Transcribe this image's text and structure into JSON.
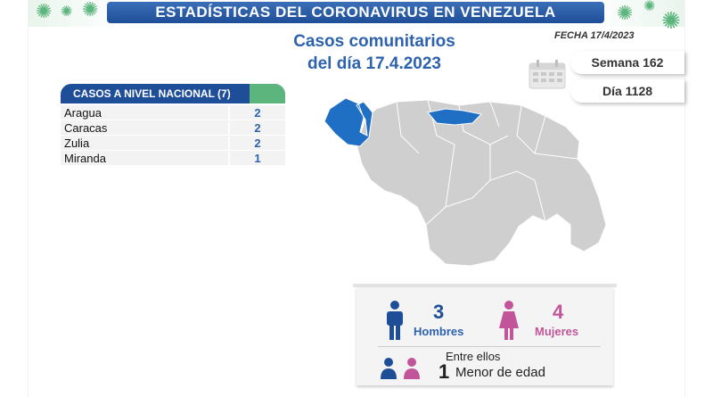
{
  "header": {
    "title": "ESTADÍSTICAS DEL CORONAVIRUS EN VENEZUELA"
  },
  "subtitle": {
    "line1": "Casos comunitarios",
    "line2": "del día 17.4.2023"
  },
  "fecha": "FECHA 17/4/2023",
  "semana": "Semana 162",
  "dia": "Día 1128",
  "nacional": {
    "header": "CASOS A NIVEL NACIONAL  (7)",
    "rows": [
      {
        "name": "Aragua",
        "value": "2"
      },
      {
        "name": "Caracas",
        "value": "2"
      },
      {
        "name": "Zulia",
        "value": "2"
      },
      {
        "name": "Miranda",
        "value": "1"
      }
    ]
  },
  "stats": {
    "hombres_count": "3",
    "hombres_label": "Hombres",
    "mujeres_count": "4",
    "mujeres_label": "Mujeres",
    "entre_ellos": "Entre ellos",
    "menor_count": "1",
    "menor_label": "Menor de edad"
  },
  "colors": {
    "blue": "#1f4e98",
    "green": "#5cb57c",
    "pink": "#c2559a",
    "map_gray": "#cfcfcf",
    "highlight": "#1f6fc4"
  },
  "icons": [
    "virus-icon",
    "calendar-icon",
    "man-icon",
    "woman-icon",
    "children-icon"
  ]
}
